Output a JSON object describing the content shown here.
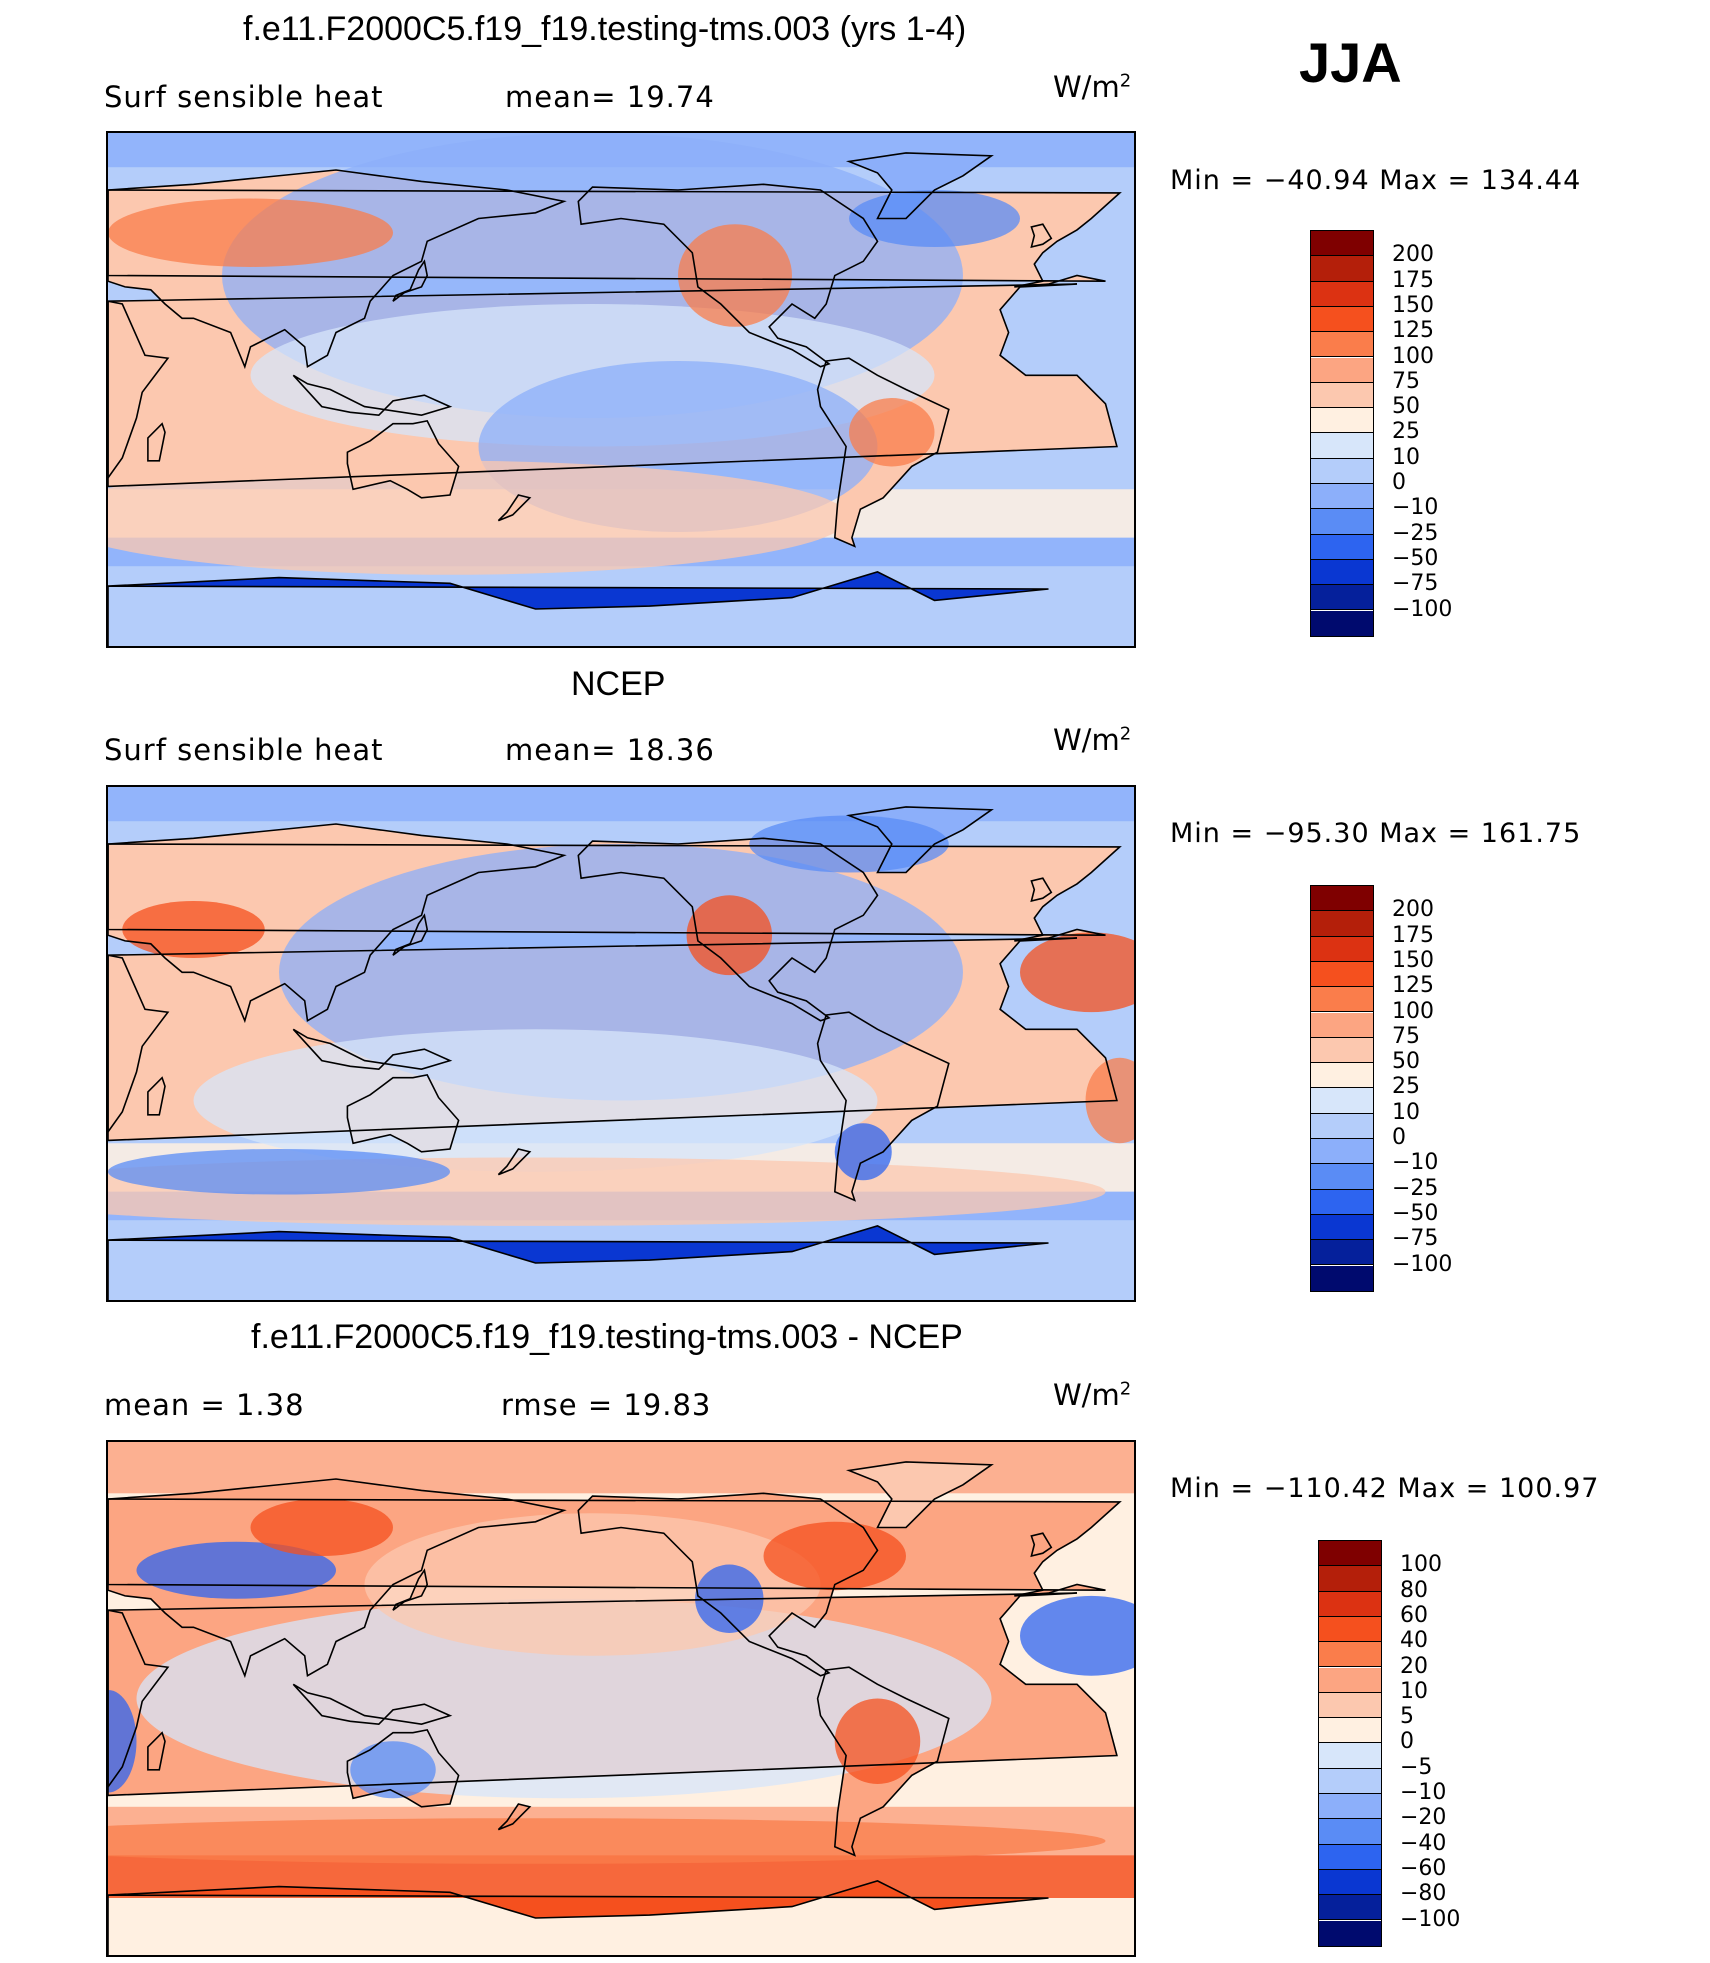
{
  "season": "JJA",
  "units_base": "W/m",
  "units_exp": "2",
  "panels": [
    {
      "id": "model",
      "title": "f.e11.F2000C5.f19_f19.testing-tms.003 (yrs 1-4)",
      "left_label": "Surf  sensible  heat",
      "right_label": "mean=   19.74",
      "min_max": "Min  =  −40.94  Max  =  134.44",
      "colorbar": [
        "200",
        "175",
        "150",
        "125",
        "100",
        "75",
        "50",
        "25",
        "10",
        "0",
        "−10",
        "−25",
        "−50",
        "−75",
        "−100"
      ]
    },
    {
      "id": "obs",
      "title": "NCEP",
      "left_label": "Surf  sensible  heat",
      "right_label": "mean=   18.36",
      "min_max": "Min  =  −95.30  Max  =  161.75",
      "colorbar": [
        "200",
        "175",
        "150",
        "125",
        "100",
        "75",
        "50",
        "25",
        "10",
        "0",
        "−10",
        "−25",
        "−50",
        "−75",
        "−100"
      ]
    },
    {
      "id": "diff",
      "title": "f.e11.F2000C5.f19_f19.testing-tms.003 - NCEP",
      "left_label": "mean  =     1.38",
      "right_label": "rmse  =    19.83",
      "min_max": "Min  =  −110.42  Max  =  100.97",
      "colorbar": [
        "100",
        "80",
        "60",
        "40",
        "20",
        "10",
        "5",
        "0",
        "−5",
        "−10",
        "−20",
        "−40",
        "−60",
        "−80",
        "−100"
      ]
    }
  ],
  "colors": {
    "cbar_fill": [
      "#7f0000",
      "#b41f0a",
      "#dc3212",
      "#f5501e",
      "#fa7d4b",
      "#fca582",
      "#fcc8af",
      "#fff0e1",
      "#d7e6fa",
      "#b4cdfa",
      "#8caffa",
      "#5a8cf5",
      "#2d64f0",
      "#0a37d2",
      "#05209b",
      "#000a6e"
    ],
    "ocean_model": "#b4cdfa",
    "ocean_obs": "#b4cdfa",
    "ocean_diff": "#fff0e1",
    "land_model": "#fcc8af",
    "land_obs": "#fcc8af",
    "land_diff": "#fca582",
    "antarctic": "#0a37d2",
    "antarctic_diff": "#f5501e"
  }
}
